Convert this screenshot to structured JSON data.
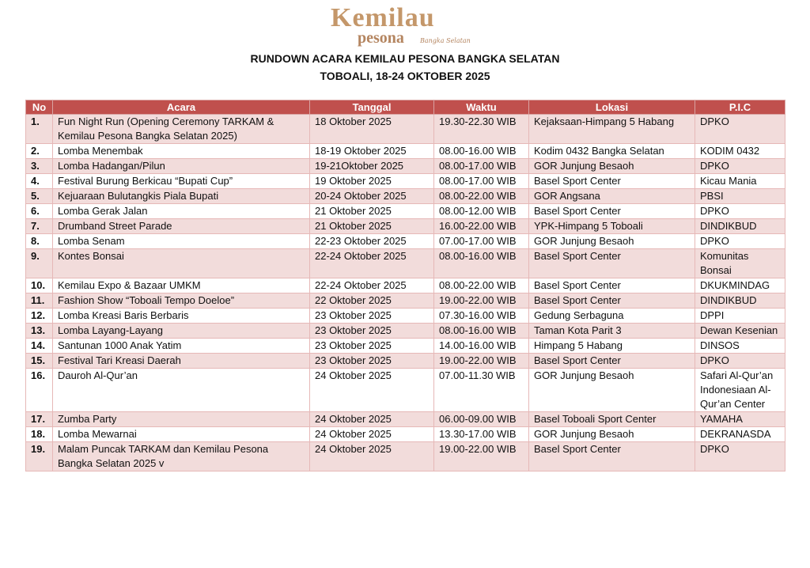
{
  "header": {
    "logo": {
      "main": "Kemilau",
      "sub": "pesona",
      "script": "Bangka Selatan"
    },
    "title": "RUNDOWN ACARA KEMILAU PESONA BANGKA  SELATAN",
    "subtitle": "TOBOALI, 18-24 OKTOBER 2025"
  },
  "table": {
    "columns": [
      "No",
      "Acara",
      "Tanggal",
      "Waktu",
      "Lokasi",
      "P.I.C"
    ],
    "rows": [
      [
        "1.",
        "Fun Night Run (Opening Ceremony TARKAM & Kemilau Pesona Bangka Selatan 2025)",
        "18 Oktober 2025",
        "19.30-22.30 WIB",
        "Kejaksaan-Himpang 5 Habang",
        "DPKO"
      ],
      [
        "2.",
        "Lomba Menembak",
        "18-19 Oktober 2025",
        "08.00-16.00 WIB",
        "Kodim 0432 Bangka Selatan",
        "KODIM 0432"
      ],
      [
        "3.",
        "Lomba Hadangan/Pilun",
        "19-21Oktober 2025",
        "08.00-17.00 WIB",
        "GOR Junjung Besaoh",
        "DPKO"
      ],
      [
        "4.",
        "Festival Burung Berkicau “Bupati Cup”",
        "19 Oktober 2025",
        "08.00-17.00 WIB",
        "Basel Sport Center",
        "Kicau Mania"
      ],
      [
        "5.",
        "Kejuaraan Bulutangkis Piala Bupati",
        "20-24 Oktober 2025",
        "08.00-22.00 WIB",
        "GOR Angsana",
        "PBSI"
      ],
      [
        "6.",
        "Lomba Gerak Jalan",
        "21 Oktober 2025",
        "08.00-12.00 WIB",
        "Basel Sport Center",
        "DPKO"
      ],
      [
        "7.",
        "Drumband Street Parade",
        "21 Oktober 2025",
        "16.00-22.00 WIB",
        "YPK-Himpang 5 Toboali",
        "DINDIKBUD"
      ],
      [
        "8.",
        "Lomba Senam",
        "22-23 Oktober 2025",
        "07.00-17.00 WIB",
        "GOR Junjung Besaoh",
        "DPKO"
      ],
      [
        "9.",
        "Kontes Bonsai",
        "22-24  Oktober 2025",
        "08.00-16.00 WIB",
        "Basel Sport Center",
        "Komunitas Bonsai"
      ],
      [
        "10.",
        "Kemilau Expo & Bazaar UMKM",
        "22-24 Oktober 2025",
        "08.00-22.00 WIB",
        "Basel Sport Center",
        "DKUKMINDAG"
      ],
      [
        "11.",
        "Fashion Show “Toboali Tempo Doeloe”",
        "22 Oktober 2025",
        "19.00-22.00 WIB",
        "Basel Sport Center",
        "DINDIKBUD"
      ],
      [
        "12.",
        "Lomba Kreasi Baris Berbaris",
        "23 Oktober 2025",
        "07.30-16.00 WIB",
        "Gedung Serbaguna",
        "DPPI"
      ],
      [
        "13.",
        "Lomba Layang-Layang",
        "23 Oktober 2025",
        "08.00-16.00 WIB",
        "Taman Kota Parit 3",
        "Dewan Kesenian"
      ],
      [
        "14.",
        "Santunan 1000 Anak Yatim",
        "23 Oktober 2025",
        "14.00-16.00 WIB",
        "Himpang 5 Habang",
        "DINSOS"
      ],
      [
        "15.",
        "Festival Tari Kreasi Daerah",
        "23 Oktober 2025",
        "19.00-22.00 WIB",
        "Basel Sport Center",
        "DPKO"
      ],
      [
        "16.",
        "Dauroh Al-Qur’an",
        "24 Oktober 2025",
        "07.00-11.30 WIB",
        "GOR Junjung Besaoh",
        "Safari Al-Qur’an Indonesiaan Al-Qur’an Center"
      ],
      [
        "17.",
        "Zumba Party",
        "24 Oktober 2025",
        "06.00-09.00 WIB",
        "Basel Toboali Sport Center",
        "YAMAHA"
      ],
      [
        "18.",
        "Lomba Mewarnai",
        "24 Oktober 2025",
        "13.30-17.00 WIB",
        "GOR Junjung Besaoh",
        "DEKRANASDA"
      ],
      [
        "19.",
        "Malam Puncak TARKAM dan Kemilau Pesona Bangka Selatan 2025 v",
        "24 Oktober 2025",
        "19.00-22.00 WIB",
        "Basel Sport Center",
        "DPKO"
      ]
    ]
  }
}
